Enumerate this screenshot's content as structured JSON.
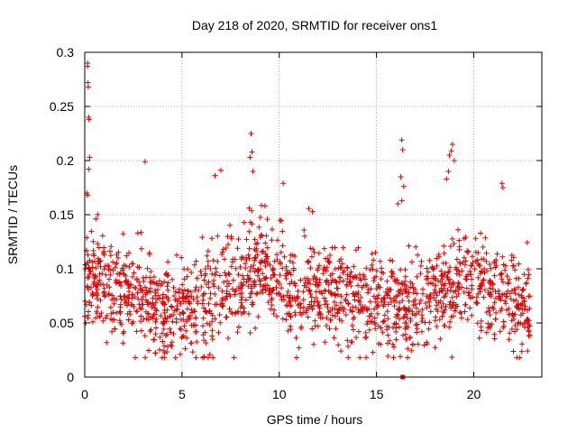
{
  "chart_data": {
    "type": "scatter",
    "title": "Day 218 of 2020, SRMTID for receiver ons1",
    "xlabel": "GPS time / hours",
    "ylabel": "SRMTID / TECUs",
    "xlim": [
      0,
      23.5
    ],
    "ylim": [
      0,
      0.3
    ],
    "x_ticks": [
      0,
      5,
      10,
      15,
      20
    ],
    "x_tick_labels": [
      "0",
      "5",
      "10",
      "15",
      "20"
    ],
    "y_ticks": [
      0,
      0.05,
      0.1,
      0.15,
      0.2,
      0.25,
      0.3
    ],
    "y_tick_labels": [
      "0",
      "0.05",
      "0.1",
      "0.15",
      "0.2",
      "0.25",
      "0.3"
    ],
    "grid": true,
    "marker": "plus",
    "series_color": "#e00000",
    "special_point": {
      "x": 16.35,
      "y": 0.0,
      "marker": "square"
    },
    "outliers": [
      {
        "x": 0.15,
        "y": 0.29
      },
      {
        "x": 0.15,
        "y": 0.287
      },
      {
        "x": 0.17,
        "y": 0.272
      },
      {
        "x": 0.18,
        "y": 0.268
      },
      {
        "x": 0.2,
        "y": 0.24
      },
      {
        "x": 0.22,
        "y": 0.238
      },
      {
        "x": 0.25,
        "y": 0.203
      },
      {
        "x": 0.2,
        "y": 0.192
      },
      {
        "x": 0.1,
        "y": 0.17
      },
      {
        "x": 0.15,
        "y": 0.168
      },
      {
        "x": 3.1,
        "y": 0.199
      },
      {
        "x": 8.55,
        "y": 0.225
      },
      {
        "x": 8.6,
        "y": 0.208
      },
      {
        "x": 8.5,
        "y": 0.203
      },
      {
        "x": 8.65,
        "y": 0.19
      },
      {
        "x": 6.7,
        "y": 0.186
      },
      {
        "x": 7.0,
        "y": 0.191
      },
      {
        "x": 10.2,
        "y": 0.179
      },
      {
        "x": 16.3,
        "y": 0.219
      },
      {
        "x": 16.35,
        "y": 0.21
      },
      {
        "x": 16.25,
        "y": 0.185
      },
      {
        "x": 16.4,
        "y": 0.176
      },
      {
        "x": 18.9,
        "y": 0.215
      },
      {
        "x": 18.85,
        "y": 0.209
      },
      {
        "x": 18.75,
        "y": 0.205
      },
      {
        "x": 19.0,
        "y": 0.2
      },
      {
        "x": 21.45,
        "y": 0.179
      },
      {
        "x": 21.5,
        "y": 0.175
      },
      {
        "x": 18.7,
        "y": 0.19
      },
      {
        "x": 18.6,
        "y": 0.183
      },
      {
        "x": 0.05,
        "y": 0.05
      },
      {
        "x": 16.3,
        "y": 0.163
      },
      {
        "x": 16.1,
        "y": 0.16
      }
    ],
    "trend": [
      {
        "x": 0.0,
        "y": 0.09
      },
      {
        "x": 0.5,
        "y": 0.095
      },
      {
        "x": 1.0,
        "y": 0.085
      },
      {
        "x": 2.0,
        "y": 0.075
      },
      {
        "x": 3.0,
        "y": 0.075
      },
      {
        "x": 3.5,
        "y": 0.062
      },
      {
        "x": 4.5,
        "y": 0.06
      },
      {
        "x": 5.5,
        "y": 0.06
      },
      {
        "x": 6.0,
        "y": 0.065
      },
      {
        "x": 7.0,
        "y": 0.082
      },
      {
        "x": 8.0,
        "y": 0.088
      },
      {
        "x": 9.0,
        "y": 0.1
      },
      {
        "x": 10.0,
        "y": 0.085
      },
      {
        "x": 11.0,
        "y": 0.075
      },
      {
        "x": 12.0,
        "y": 0.08
      },
      {
        "x": 13.0,
        "y": 0.075
      },
      {
        "x": 14.0,
        "y": 0.07
      },
      {
        "x": 15.0,
        "y": 0.065
      },
      {
        "x": 16.0,
        "y": 0.065
      },
      {
        "x": 17.0,
        "y": 0.07
      },
      {
        "x": 18.0,
        "y": 0.075
      },
      {
        "x": 19.0,
        "y": 0.085
      },
      {
        "x": 20.0,
        "y": 0.085
      },
      {
        "x": 21.0,
        "y": 0.08
      },
      {
        "x": 22.0,
        "y": 0.065
      },
      {
        "x": 23.0,
        "y": 0.06
      }
    ],
    "bulk_sample": {
      "x_range": [
        0.0,
        22.9
      ],
      "y_spread": 0.022,
      "count": 1700,
      "seed": 218,
      "notes": "dense cloud of measurements following the trend with occasional upward spikes"
    }
  }
}
